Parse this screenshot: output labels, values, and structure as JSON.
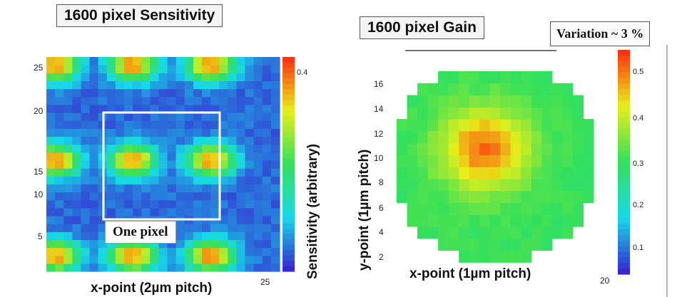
{
  "left_panel": {
    "title": "1600 pixel Sensitivity",
    "xlabel": "x-point (2µm pitch)",
    "colorbar_label": "Sensitivity (arbitrary)",
    "x_tick": "25",
    "y_ticks": [
      "25",
      "20",
      "15",
      "10",
      "5"
    ],
    "colorbar_ticks": [
      "0.4"
    ],
    "annotation": "One pixel"
  },
  "right_panel": {
    "title": "1600 pixel Gain",
    "variation": "Variation ~ 3 %",
    "xlabel": "x-point (1µm pitch)",
    "ylabel": "y-point (1µm pitch)",
    "x_tick": "20",
    "y_ticks": [
      "16",
      "14",
      "12",
      "10",
      "8",
      "6",
      "4",
      "2"
    ],
    "colorbar_ticks": [
      "0.5",
      "0.4",
      "0.3",
      "0.2",
      "0.1"
    ]
  },
  "chart_data": [
    {
      "type": "heatmap",
      "title": "1600 pixel Sensitivity",
      "xlabel": "x-point (2µm pitch)",
      "colorbar_label": "Sensitivity (arbitrary)",
      "xlim": [
        0,
        27
      ],
      "ylim": [
        0,
        27
      ],
      "grid": false,
      "pixel_period": 16,
      "hot_spot_centers": [
        [
          1,
          26
        ],
        [
          10,
          26
        ],
        [
          19,
          26
        ],
        [
          1,
          14
        ],
        [
          10,
          14
        ],
        [
          19,
          14
        ],
        [
          1,
          2
        ],
        [
          10,
          2
        ],
        [
          19,
          2
        ]
      ],
      "peak_value": 0.45,
      "background_value": 0.05
    },
    {
      "type": "heatmap",
      "title": "1600 pixel Gain",
      "xlabel": "x-point (1µm pitch)",
      "ylabel": "y-point (1µm pitch)",
      "annotation": "Variation ~ 3 %",
      "xlim": [
        0,
        21
      ],
      "ylim": [
        0,
        17
      ],
      "grid": false,
      "peak_value": 0.55,
      "edge_value": 0.3
    }
  ],
  "colors": {
    "low": "#3a1fd0",
    "mid_low": "#16d9e8",
    "mid": "#34e05a",
    "mid_high": "#e8ef18",
    "high": "#ff2a10"
  }
}
